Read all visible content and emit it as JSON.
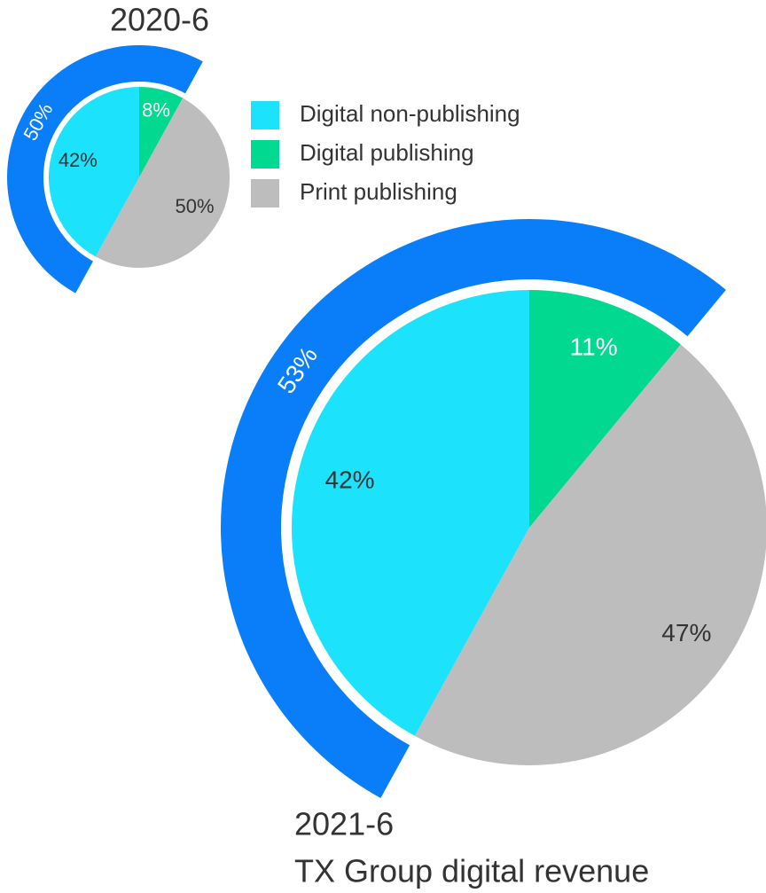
{
  "chart_data": [
    {
      "type": "pie",
      "title": "2020-6",
      "categories": [
        "Digital non-publishing",
        "Digital publishing",
        "Print publishing"
      ],
      "values": [
        42,
        8,
        50
      ],
      "value_labels": [
        "42%",
        "8%",
        "50%"
      ],
      "colors": [
        "#1ce2fb",
        "#00d98f",
        "#bdbdbd"
      ],
      "ring_value": 50,
      "ring_label": "50%",
      "ring_color": "#0a7ef8"
    },
    {
      "type": "pie",
      "title": "2021-6",
      "subtitle": "TX Group digital revenue",
      "categories": [
        "Digital non-publishing",
        "Digital publishing",
        "Print publishing"
      ],
      "values": [
        42,
        11,
        47
      ],
      "value_labels": [
        "42%",
        "11%",
        "47%"
      ],
      "colors": [
        "#1ce2fb",
        "#00d98f",
        "#bdbdbd"
      ],
      "ring_value": 53,
      "ring_label": "53%",
      "ring_color": "#0a7ef8"
    }
  ]
}
